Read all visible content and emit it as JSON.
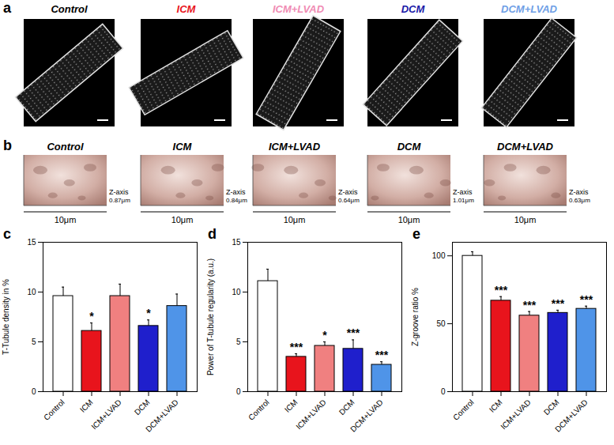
{
  "image_panels": {
    "a": {
      "panel": "a",
      "titles": [
        "Control",
        "ICM",
        "ICM+LVAD",
        "DCM",
        "DCM+LVAD"
      ],
      "title_colors": [
        "#000000",
        "#e8141c",
        "#f08cb4",
        "#1a1aa8",
        "#6fa0e6"
      ]
    },
    "b": {
      "panel": "b",
      "titles": [
        "Control",
        "ICM",
        "ICM+LVAD",
        "DCM",
        "DCM+LVAD"
      ],
      "z_axis_label": "Z-axis",
      "z_labels": [
        "0.87μm",
        "0.84μm",
        "0.64μm",
        "1.01μm",
        "0.63μm"
      ],
      "scale_label": "10μm"
    }
  },
  "chart_data": [
    {
      "type": "bar",
      "panel": "c",
      "categories": [
        "Control",
        "ICM",
        "ICM+LVAD",
        "DCM",
        "DCM+LVAD"
      ],
      "values": [
        9.6,
        6.1,
        9.6,
        6.6,
        8.6
      ],
      "errors": [
        0.9,
        0.8,
        1.2,
        0.6,
        1.2
      ],
      "annotations": [
        null,
        "*",
        null,
        "*",
        null
      ],
      "colors": [
        "#ffffff",
        "#e8141c",
        "#f08080",
        "#1f1fcc",
        "#4f94e8"
      ],
      "ylabel": "T-Tubule density in %",
      "ylim": [
        0,
        15
      ],
      "yticks": [
        0,
        5,
        10,
        15
      ]
    },
    {
      "type": "bar",
      "panel": "d",
      "categories": [
        "Control",
        "ICM",
        "ICM+LVAD",
        "DCM",
        "DCM+LVAD"
      ],
      "values": [
        11.1,
        3.5,
        4.6,
        4.3,
        2.7
      ],
      "errors": [
        1.2,
        0.3,
        0.4,
        0.9,
        0.3
      ],
      "annotations": [
        null,
        "***",
        "*",
        "***",
        "***"
      ],
      "colors": [
        "#ffffff",
        "#e8141c",
        "#f08080",
        "#1f1fcc",
        "#4f94e8"
      ],
      "ylabel": "Power of T-tubule regularity (a.u.)",
      "ylim": [
        0,
        15
      ],
      "yticks": [
        0,
        5,
        10,
        15
      ]
    },
    {
      "type": "bar",
      "panel": "e",
      "categories": [
        "Control",
        "ICM",
        "ICM+LVAD",
        "DCM",
        "DCM+LVAD"
      ],
      "values": [
        100,
        67,
        56,
        58,
        61
      ],
      "errors": [
        3,
        3,
        3,
        2,
        2
      ],
      "annotations": [
        null,
        "***",
        "***",
        "***",
        "***"
      ],
      "colors": [
        "#ffffff",
        "#e8141c",
        "#f08080",
        "#1f1fcc",
        "#4f94e8"
      ],
      "ylabel": "Z-groove ratio %",
      "ylim": [
        0,
        110
      ],
      "yticks": [
        0,
        50,
        100
      ]
    }
  ]
}
